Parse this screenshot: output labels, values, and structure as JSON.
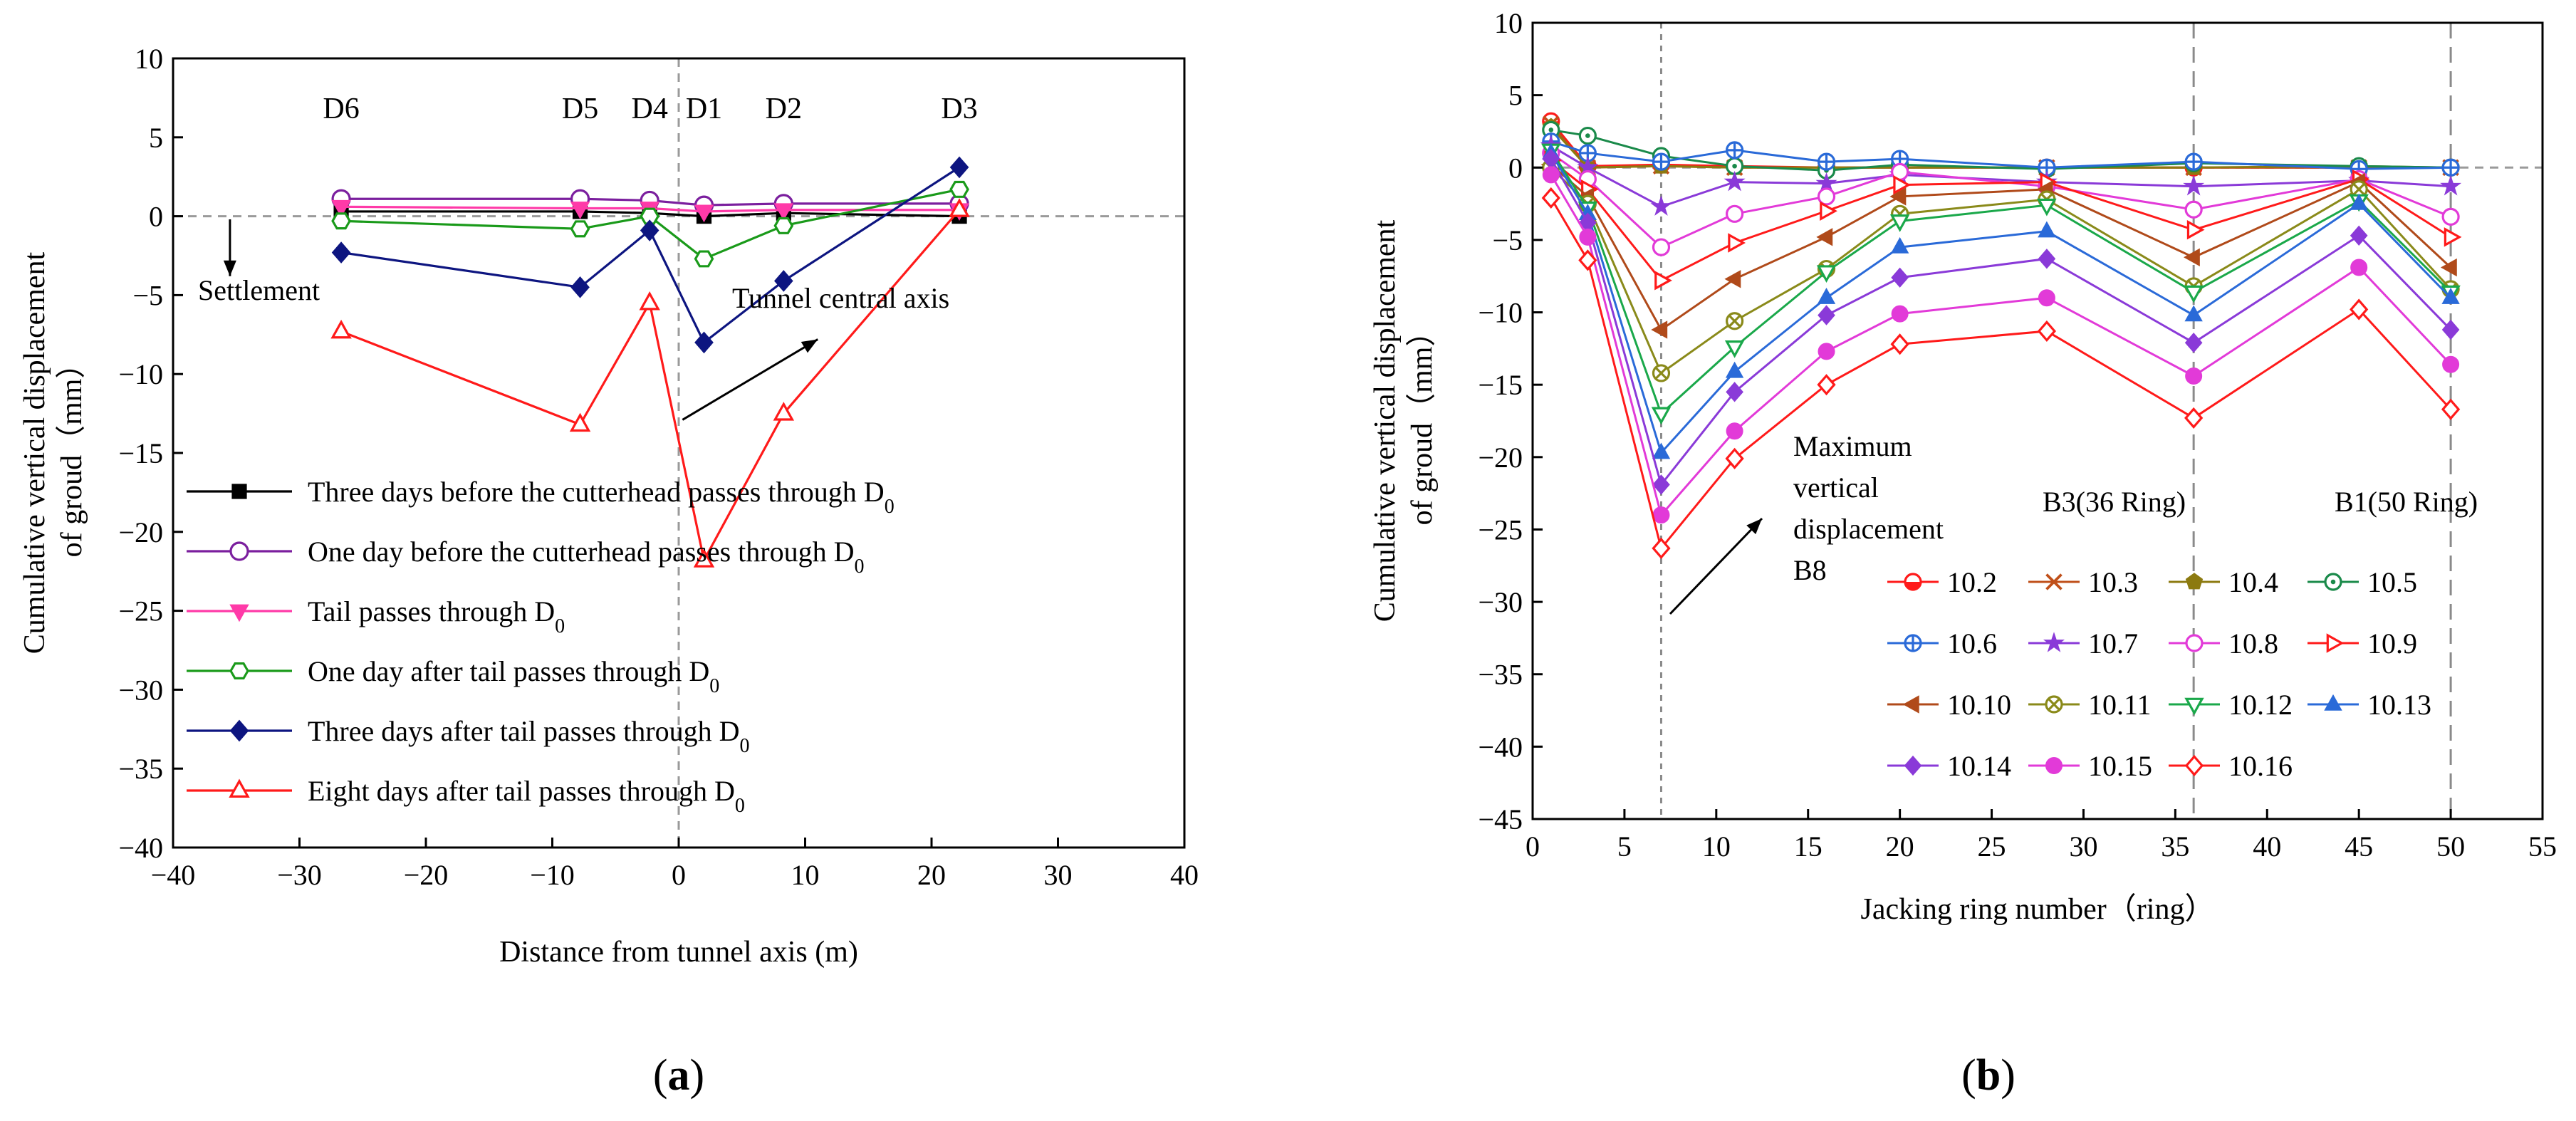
{
  "chart_data": [
    {
      "type": "line",
      "panel": "a",
      "caption": "(a)",
      "xlabel": "Distance from tunnel axis (m)",
      "ylabel_line1": "Cumulative vertical displacement",
      "ylabel_line2": "of groud（mm）",
      "xlim": [
        -40,
        40
      ],
      "ylim": [
        -40,
        10
      ],
      "xticks": [
        -40,
        -30,
        -20,
        -10,
        0,
        10,
        20,
        30,
        40
      ],
      "xtick_labels": [
        "−40",
        "−30",
        "−20",
        "−10",
        "0",
        "10",
        "20",
        "30",
        "40"
      ],
      "yticks": [
        10,
        5,
        0,
        -5,
        -10,
        -15,
        -20,
        -25,
        -30,
        -35,
        -40
      ],
      "ytick_labels": [
        "10",
        "5",
        "0",
        "−5",
        "−10",
        "−15",
        "−20",
        "−25",
        "−30",
        "−35",
        "−40"
      ],
      "reference_lines": {
        "y": 0,
        "x": 0
      },
      "points": [
        {
          "label": "D6",
          "x": -26.7,
          "label_y": 6.2
        },
        {
          "label": "D5",
          "x": -7.8,
          "label_y": 6.2
        },
        {
          "label": "D4",
          "x": -2.3,
          "label_y": 6.2
        },
        {
          "label": "D1",
          "x": 2.0,
          "label_y": 6.2
        },
        {
          "label": "D2",
          "x": 8.3,
          "label_y": 6.2
        },
        {
          "label": "D3",
          "x": 22.2,
          "label_y": 6.2
        }
      ],
      "x": [
        -26.7,
        -7.8,
        -2.3,
        2.0,
        8.3,
        22.2
      ],
      "series": [
        {
          "name": "Three days before the cutterhead passes through D",
          "sub": "0",
          "color": "#000000",
          "marker": "square-filled",
          "values": [
            0.3,
            0.3,
            0.2,
            0.0,
            0.2,
            0.0
          ]
        },
        {
          "name": "One day before the cutterhead passes through D",
          "sub": "0",
          "color": "#7b1f9e",
          "marker": "circle-open",
          "values": [
            1.1,
            1.1,
            1.0,
            0.7,
            0.8,
            0.8
          ]
        },
        {
          "name": "Tail passes through D",
          "sub": "0",
          "color": "#ff3aa8",
          "marker": "triangle-down-filled",
          "values": [
            0.6,
            0.5,
            0.5,
            0.3,
            0.4,
            0.4
          ]
        },
        {
          "name": "One day after tail passes through  D",
          "sub": "0",
          "color": "#1a9a1a",
          "marker": "hexagon-open",
          "values": [
            -0.3,
            -0.8,
            0.0,
            -2.7,
            -0.6,
            1.7
          ]
        },
        {
          "name": "Three days after tail passes through  D",
          "sub": "0",
          "color": "#0d1580",
          "marker": "diamond-filled",
          "values": [
            -2.3,
            -4.5,
            -0.9,
            -8.0,
            -4.1,
            3.1
          ]
        },
        {
          "name": "Eight days after tail passes through  D",
          "sub": "0",
          "color": "#ff1a1a",
          "marker": "triangle-up-open",
          "values": [
            -7.3,
            -13.2,
            -5.5,
            -21.8,
            -12.5,
            0.4
          ]
        }
      ],
      "annotations": [
        {
          "id": "settlement",
          "text": "Settlement"
        },
        {
          "id": "axis",
          "text": "Tunnel central axis"
        }
      ]
    },
    {
      "type": "line",
      "panel": "b",
      "caption": "(b)",
      "xlabel": "Jacking ring number（ring）",
      "ylabel_line1": "Cumulative vertical displacement",
      "ylabel_line2": "of groud（mm）",
      "xlim": [
        0,
        55
      ],
      "ylim": [
        -45,
        10
      ],
      "xticks": [
        0,
        5,
        10,
        15,
        20,
        25,
        30,
        35,
        40,
        45,
        50,
        55
      ],
      "xtick_labels": [
        "0",
        "5",
        "10",
        "15",
        "20",
        "25",
        "30",
        "35",
        "40",
        "45",
        "50",
        "55"
      ],
      "yticks": [
        10,
        5,
        0,
        -5,
        -10,
        -15,
        -20,
        -25,
        -30,
        -35,
        -40,
        -45
      ],
      "ytick_labels": [
        "10",
        "5",
        "0",
        "−5",
        "−10",
        "−15",
        "−20",
        "−25",
        "−30",
        "−35",
        "−40",
        "−45"
      ],
      "reference_lines_x": [
        7,
        36,
        50
      ],
      "x": [
        1,
        3,
        7,
        11,
        16,
        20,
        28,
        36,
        45,
        50
      ],
      "series": [
        {
          "name": "10.2",
          "color": "#ff1a1a",
          "marker": "circle-half",
          "values": [
            3.2,
            0.1,
            0.2,
            0.1,
            0.0,
            0.0,
            0.0,
            0.0,
            0.0,
            0.0
          ]
        },
        {
          "name": "10.3",
          "color": "#c0501a",
          "marker": "x",
          "values": [
            3.0,
            0.0,
            0.1,
            0.0,
            0.0,
            0.0,
            0.0,
            0.0,
            0.0,
            0.0
          ]
        },
        {
          "name": "10.4",
          "color": "#8c7a10",
          "marker": "pentagon-filled",
          "values": [
            2.8,
            0.0,
            0.1,
            0.0,
            0.0,
            0.0,
            0.0,
            0.0,
            0.1,
            0.0
          ]
        },
        {
          "name": "10.5",
          "color": "#1a8a4a",
          "marker": "circle-dot",
          "values": [
            2.6,
            2.2,
            0.8,
            0.1,
            -0.2,
            0.2,
            -0.1,
            0.3,
            0.1,
            0.0
          ]
        },
        {
          "name": "10.6",
          "color": "#2a6ad8",
          "marker": "circle-cross",
          "values": [
            1.8,
            1.0,
            0.4,
            1.2,
            0.4,
            0.6,
            0.0,
            0.4,
            -0.1,
            0.0
          ]
        },
        {
          "name": "10.7",
          "color": "#8a3ad8",
          "marker": "star",
          "values": [
            1.5,
            0.0,
            -2.7,
            -1.0,
            -1.1,
            -0.5,
            -1.0,
            -1.3,
            -0.9,
            -1.3
          ]
        },
        {
          "name": "10.8",
          "color": "#e23ad8",
          "marker": "circle-open",
          "values": [
            1.0,
            -0.8,
            -5.5,
            -3.2,
            -2.0,
            -0.3,
            -1.3,
            -2.9,
            -0.8,
            -3.4
          ]
        },
        {
          "name": "10.9",
          "color": "#ff1a1a",
          "marker": "triangle-right-open",
          "values": [
            0.5,
            -1.5,
            -7.8,
            -5.2,
            -3.0,
            -1.2,
            -1.0,
            -4.3,
            -0.8,
            -4.8
          ]
        },
        {
          "name": "10.10",
          "color": "#b04a1a",
          "marker": "triangle-left-filled",
          "values": [
            0.2,
            -2.0,
            -11.2,
            -7.7,
            -4.8,
            -2.0,
            -1.5,
            -6.2,
            -1.0,
            -6.9
          ]
        },
        {
          "name": "10.11",
          "color": "#8a8a1a",
          "marker": "circle-x",
          "values": [
            0.0,
            -2.5,
            -14.2,
            -10.6,
            -7.0,
            -3.2,
            -2.2,
            -8.2,
            -1.5,
            -8.4
          ]
        },
        {
          "name": "10.12",
          "color": "#1aa84a",
          "marker": "triangle-down-open",
          "values": [
            1.2,
            -2.8,
            -17.0,
            -12.4,
            -7.2,
            -3.7,
            -2.6,
            -8.6,
            -2.3,
            -8.6
          ]
        },
        {
          "name": "10.13",
          "color": "#2a6ad8",
          "marker": "triangle-up-filled",
          "values": [
            1.0,
            -3.2,
            -19.7,
            -14.1,
            -9.0,
            -5.5,
            -4.4,
            -10.2,
            -2.5,
            -9.0
          ]
        },
        {
          "name": "10.14",
          "color": "#8a3ad8",
          "marker": "diamond-filled",
          "values": [
            0.6,
            -3.8,
            -21.9,
            -15.5,
            -10.2,
            -7.6,
            -6.3,
            -12.1,
            -4.7,
            -11.2
          ]
        },
        {
          "name": "10.15",
          "color": "#e23ad8",
          "marker": "circle-filled",
          "values": [
            -0.5,
            -4.8,
            -24.0,
            -18.2,
            -12.7,
            -10.1,
            -9.0,
            -14.4,
            -6.9,
            -13.6
          ]
        },
        {
          "name": "10.16",
          "color": "#ff1a1a",
          "marker": "diamond-open",
          "values": [
            -2.1,
            -6.4,
            -26.3,
            -20.1,
            -15.0,
            -12.2,
            -11.3,
            -17.3,
            -9.8,
            -16.7
          ]
        }
      ],
      "annotations": [
        {
          "id": "maxdisp",
          "lines": [
            "Maximum",
            "vertical",
            "displacement",
            "B8"
          ]
        },
        {
          "id": "b3",
          "text": "B3(36 Ring)"
        },
        {
          "id": "b1",
          "text": "B1(50 Ring)"
        }
      ]
    }
  ]
}
